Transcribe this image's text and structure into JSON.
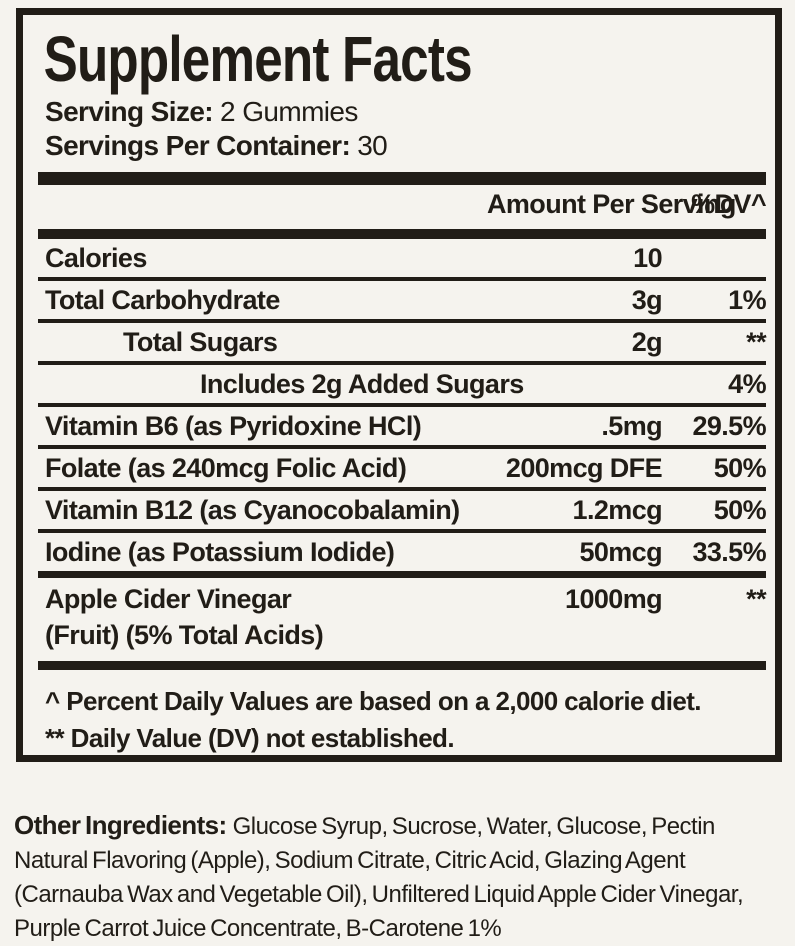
{
  "panel": {
    "title": "Supplement Facts",
    "serving_size_label": "Serving Size:",
    "serving_size_value": "2 Gummies",
    "servings_label": "Servings Per Container:",
    "servings_value": "30",
    "header": {
      "amount": "Amount Per Serving",
      "dv": "%DV^"
    },
    "rows": [
      {
        "name": "Calories",
        "amount": "10",
        "dv": ""
      },
      {
        "name": "Total Carbohydrate",
        "amount": "3g",
        "dv": "1%"
      },
      {
        "name": "Total Sugars",
        "amount": "2g",
        "dv": "**"
      },
      {
        "name": "Includes 2g Added Sugars",
        "amount": "",
        "dv": "4%"
      },
      {
        "name": "Vitamin B6 (as Pyridoxine HCl)",
        "amount": ".5mg",
        "dv": "29.5%"
      },
      {
        "name": "Folate (as 240mcg Folic Acid)",
        "amount": "200mcg DFE",
        "dv": "50%"
      },
      {
        "name": "Vitamin B12 (as Cyanocobalamin)",
        "amount": "1.2mcg",
        "dv": "50%"
      },
      {
        "name": "Iodine (as Potassium Iodide)",
        "amount": "50mcg",
        "dv": "33.5%"
      }
    ],
    "highlight_row": {
      "name": "Apple Cider Vinegar",
      "subname": "(Fruit) (5% Total Acids)",
      "amount": "1000mg",
      "dv": "**"
    },
    "footnotes": [
      "^ Percent Daily Values are based on a 2,000 calorie diet.",
      "** Daily Value (DV) not established."
    ]
  },
  "other_ingredients": {
    "label": "Other Ingredients:",
    "text": "Glucose Syrup, Sucrose, Water, Glucose, Pectin Natural Flavoring (Apple), Sodium Citrate, Citric Acid, Glazing Agent (Carnauba Wax and Vegetable Oil), Unfiltered Liquid Apple Cider Vinegar, Purple Carrot Juice Concentrate, B-Carotene 1%"
  },
  "colors": {
    "background": "#f5f3ee",
    "ink": "#211d17"
  }
}
